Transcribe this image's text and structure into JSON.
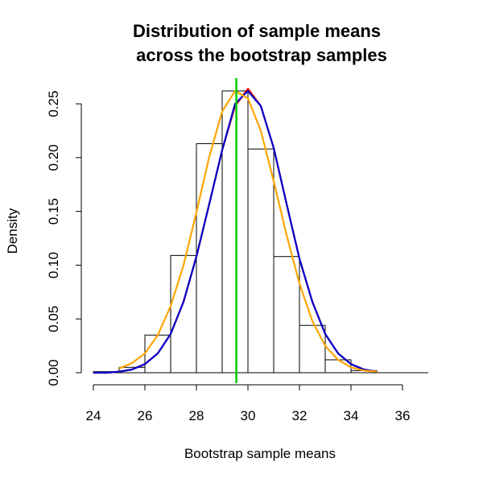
{
  "chart_data": {
    "type": "histogram",
    "title_line1": "Distribution of sample means",
    "title_line2": "across the bootstrap samples",
    "xlabel": "Bootstrap sample means",
    "ylabel": "Density",
    "xlim": [
      24,
      37
    ],
    "ylim": [
      0,
      0.26
    ],
    "x_ticks": [
      24,
      26,
      28,
      30,
      32,
      34,
      36
    ],
    "x_tick_labels": [
      "24",
      "26",
      "28",
      "30",
      "32",
      "34",
      "36"
    ],
    "y_ticks": [
      0.0,
      0.05,
      0.1,
      0.15,
      0.2,
      0.25
    ],
    "y_tick_labels": [
      "0.00",
      "0.05",
      "0.10",
      "0.15",
      "0.20",
      "0.25"
    ],
    "histogram": {
      "bin_edges": [
        24,
        25,
        26,
        27,
        28,
        29,
        30,
        31,
        32,
        33,
        34,
        35
      ],
      "densities": [
        0.001,
        0.005,
        0.035,
        0.109,
        0.213,
        0.262,
        0.208,
        0.108,
        0.044,
        0.012,
        0.002
      ]
    },
    "series": [
      {
        "name": "red-curve",
        "color": "#ff0000",
        "x": [
          24,
          24.5,
          25,
          25.5,
          26,
          26.5,
          27,
          27.5,
          28,
          28.5,
          29,
          29.5,
          30,
          30.5,
          31,
          31.5,
          32,
          32.5,
          33,
          33.5,
          34,
          34.5,
          35
        ],
        "values": [
          0.0,
          0.0,
          0.001,
          0.003,
          0.008,
          0.018,
          0.036,
          0.066,
          0.108,
          0.157,
          0.207,
          0.248,
          0.264,
          0.248,
          0.209,
          0.157,
          0.106,
          0.066,
          0.036,
          0.018,
          0.008,
          0.003,
          0.001
        ]
      },
      {
        "name": "blue-curve",
        "color": "#0000cc",
        "x": [
          24,
          24.5,
          25,
          25.5,
          26,
          26.5,
          27,
          27.5,
          28,
          28.5,
          29,
          29.5,
          30,
          30.5,
          31,
          31.5,
          32,
          32.5,
          33,
          33.5,
          34,
          34.5,
          35
        ],
        "values": [
          0.0,
          0.0,
          0.001,
          0.003,
          0.008,
          0.018,
          0.036,
          0.066,
          0.108,
          0.157,
          0.207,
          0.25,
          0.262,
          0.248,
          0.209,
          0.157,
          0.106,
          0.066,
          0.036,
          0.018,
          0.008,
          0.003,
          0.001
        ]
      },
      {
        "name": "orange-curve",
        "color": "#ffa500",
        "x": [
          25,
          25.5,
          26,
          26.5,
          27,
          27.5,
          28,
          28.5,
          29,
          29.5,
          30,
          30.5,
          31,
          31.5,
          32,
          32.5,
          33,
          33.5,
          34,
          34.5,
          35
        ],
        "values": [
          0.004,
          0.009,
          0.018,
          0.035,
          0.062,
          0.1,
          0.149,
          0.201,
          0.243,
          0.262,
          0.255,
          0.225,
          0.178,
          0.128,
          0.083,
          0.048,
          0.025,
          0.012,
          0.005,
          0.002,
          0.001
        ]
      }
    ],
    "vertical_line": {
      "x": 29.55,
      "color": "#00cc00"
    }
  }
}
